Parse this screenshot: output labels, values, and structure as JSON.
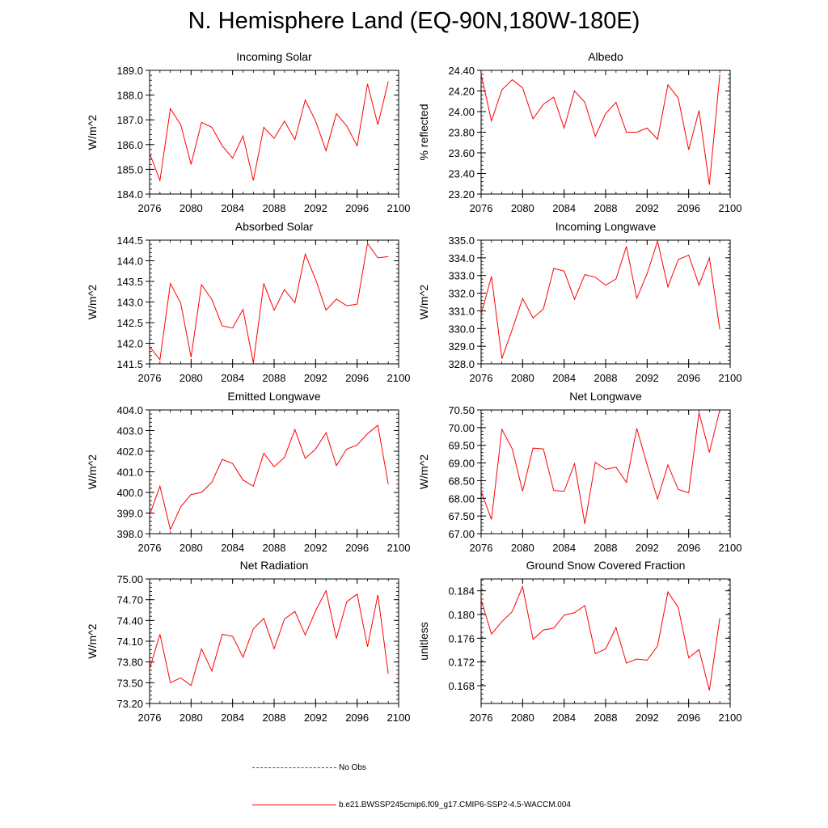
{
  "title": "N. Hemisphere Land (EQ-90N,180W-180E)",
  "colors": {
    "series": "#ff0000",
    "no_obs": "#3a3ad0",
    "axes": "#000000"
  },
  "legend": {
    "no_obs_label": "No Obs",
    "model_label": "b.e21.BWSSP245cmip6.f09_g17.CMIP6-SSP2-4.5-WACCM.004"
  },
  "chart_data": [
    {
      "type": "line",
      "title": "Incoming Solar",
      "ylabel": "W/m^2",
      "xlim": [
        2076,
        2100
      ],
      "ylim": [
        184.0,
        189.0
      ],
      "xticks": [
        2076,
        2080,
        2084,
        2088,
        2092,
        2096,
        2100
      ],
      "yticks": [
        "184.0",
        "185.0",
        "186.0",
        "187.0",
        "188.0",
        "189.0"
      ],
      "x": [
        2076,
        2077,
        2078,
        2079,
        2080,
        2081,
        2082,
        2083,
        2084,
        2085,
        2086,
        2087,
        2088,
        2089,
        2090,
        2091,
        2092,
        2093,
        2094,
        2095,
        2096,
        2097,
        2098,
        2099
      ],
      "values": [
        185.65,
        184.55,
        187.45,
        186.8,
        185.2,
        186.9,
        186.7,
        185.95,
        185.45,
        186.35,
        184.55,
        186.7,
        186.25,
        186.95,
        186.2,
        187.8,
        186.95,
        185.75,
        187.25,
        186.75,
        185.95,
        188.45,
        186.8,
        188.55
      ]
    },
    {
      "type": "line",
      "title": "Albedo",
      "ylabel": "% reflected",
      "xlim": [
        2076,
        2100
      ],
      "ylim": [
        23.2,
        24.4
      ],
      "xticks": [
        2076,
        2080,
        2084,
        2088,
        2092,
        2096,
        2100
      ],
      "yticks": [
        "23.20",
        "23.40",
        "23.60",
        "23.80",
        "24.00",
        "24.20",
        "24.40"
      ],
      "x": [
        2076,
        2077,
        2078,
        2079,
        2080,
        2081,
        2082,
        2083,
        2084,
        2085,
        2086,
        2087,
        2088,
        2089,
        2090,
        2091,
        2092,
        2093,
        2094,
        2095,
        2096,
        2097,
        2098,
        2099
      ],
      "values": [
        24.36,
        23.91,
        24.21,
        24.31,
        24.23,
        23.93,
        24.07,
        24.14,
        23.84,
        24.2,
        24.09,
        23.76,
        23.98,
        24.09,
        23.8,
        23.8,
        23.84,
        23.73,
        24.26,
        24.13,
        23.63,
        24.01,
        23.29,
        24.36
      ]
    },
    {
      "type": "line",
      "title": "Absorbed Solar",
      "ylabel": "W/m^2",
      "xlim": [
        2076,
        2100
      ],
      "ylim": [
        141.5,
        144.5
      ],
      "xticks": [
        2076,
        2080,
        2084,
        2088,
        2092,
        2096,
        2100
      ],
      "yticks": [
        "141.5",
        "142.0",
        "142.5",
        "143.0",
        "143.5",
        "144.0",
        "144.5"
      ],
      "x": [
        2076,
        2077,
        2078,
        2079,
        2080,
        2081,
        2082,
        2083,
        2084,
        2085,
        2086,
        2087,
        2088,
        2089,
        2090,
        2091,
        2092,
        2093,
        2094,
        2095,
        2096,
        2097,
        2098,
        2099
      ],
      "values": [
        141.92,
        141.6,
        143.45,
        142.97,
        141.66,
        143.42,
        143.06,
        142.42,
        142.37,
        142.82,
        141.52,
        143.45,
        142.8,
        143.3,
        142.98,
        144.16,
        143.55,
        142.8,
        143.07,
        142.91,
        142.95,
        144.42,
        144.07,
        144.1
      ]
    },
    {
      "type": "line",
      "title": "Incoming Longwave",
      "ylabel": "W/m^2",
      "xlim": [
        2076,
        2100
      ],
      "ylim": [
        328.0,
        335.0
      ],
      "xticks": [
        2076,
        2080,
        2084,
        2088,
        2092,
        2096,
        2100
      ],
      "yticks": [
        "328.0",
        "329.0",
        "330.0",
        "331.0",
        "332.0",
        "333.0",
        "334.0",
        "335.0"
      ],
      "x": [
        2076,
        2077,
        2078,
        2079,
        2080,
        2081,
        2082,
        2083,
        2084,
        2085,
        2086,
        2087,
        2088,
        2089,
        2090,
        2091,
        2092,
        2093,
        2094,
        2095,
        2096,
        2097,
        2098,
        2099
      ],
      "values": [
        330.8,
        332.95,
        328.3,
        329.95,
        331.7,
        330.6,
        331.1,
        333.4,
        333.25,
        331.65,
        333.05,
        332.9,
        332.45,
        332.8,
        334.65,
        331.7,
        333.1,
        334.95,
        332.35,
        333.9,
        334.15,
        332.45,
        334.0,
        329.95
      ]
    },
    {
      "type": "line",
      "title": "Emitted Longwave",
      "ylabel": "W/m^2",
      "xlim": [
        2076,
        2100
      ],
      "ylim": [
        398.0,
        404.0
      ],
      "xticks": [
        2076,
        2080,
        2084,
        2088,
        2092,
        2096,
        2100
      ],
      "yticks": [
        "398.0",
        "399.0",
        "400.0",
        "401.0",
        "402.0",
        "403.0",
        "404.0"
      ],
      "x": [
        2076,
        2077,
        2078,
        2079,
        2080,
        2081,
        2082,
        2083,
        2084,
        2085,
        2086,
        2087,
        2088,
        2089,
        2090,
        2091,
        2092,
        2093,
        2094,
        2095,
        2096,
        2097,
        2098,
        2099
      ],
      "values": [
        398.9,
        400.3,
        398.2,
        399.3,
        399.9,
        400.0,
        400.5,
        401.6,
        401.4,
        400.6,
        400.3,
        401.9,
        401.25,
        401.7,
        403.05,
        401.65,
        402.1,
        402.9,
        401.3,
        402.1,
        402.3,
        402.85,
        403.25,
        400.4
      ]
    },
    {
      "type": "line",
      "title": "Net Longwave",
      "ylabel": "W/m^2",
      "xlim": [
        2076,
        2100
      ],
      "ylim": [
        67.0,
        70.5
      ],
      "xticks": [
        2076,
        2080,
        2084,
        2088,
        2092,
        2096,
        2100
      ],
      "yticks": [
        "67.00",
        "67.50",
        "68.00",
        "68.50",
        "69.00",
        "69.50",
        "70.00",
        "70.50"
      ],
      "x": [
        2076,
        2077,
        2078,
        2079,
        2080,
        2081,
        2082,
        2083,
        2084,
        2085,
        2086,
        2087,
        2088,
        2089,
        2090,
        2091,
        2092,
        2093,
        2094,
        2095,
        2096,
        2097,
        2098,
        2099
      ],
      "values": [
        68.2,
        67.4,
        69.95,
        69.4,
        68.2,
        69.42,
        69.4,
        68.22,
        68.2,
        68.98,
        67.28,
        69.02,
        68.82,
        68.88,
        68.45,
        69.98,
        68.95,
        67.98,
        68.95,
        68.25,
        68.16,
        70.42,
        69.3,
        70.5
      ]
    },
    {
      "type": "line",
      "title": "Net Radiation",
      "ylabel": "W/m^2",
      "xlim": [
        2076,
        2100
      ],
      "ylim": [
        73.2,
        75.0
      ],
      "xticks": [
        2076,
        2080,
        2084,
        2088,
        2092,
        2096,
        2100
      ],
      "yticks": [
        "73.20",
        "73.50",
        "73.80",
        "74.10",
        "74.40",
        "74.70",
        "75.00"
      ],
      "x": [
        2076,
        2077,
        2078,
        2079,
        2080,
        2081,
        2082,
        2083,
        2084,
        2085,
        2086,
        2087,
        2088,
        2089,
        2090,
        2091,
        2092,
        2093,
        2094,
        2095,
        2096,
        2097,
        2098,
        2099
      ],
      "values": [
        73.7,
        74.2,
        73.5,
        73.57,
        73.46,
        73.99,
        73.67,
        74.2,
        74.17,
        73.87,
        74.28,
        74.43,
        73.99,
        74.42,
        74.53,
        74.19,
        74.54,
        74.83,
        74.14,
        74.67,
        74.78,
        74.02,
        74.77,
        73.63
      ]
    },
    {
      "type": "line",
      "title": "Ground Snow Covered Fraction",
      "ylabel": "unitless",
      "xlim": [
        2076,
        2100
      ],
      "ylim": [
        0.165,
        0.186
      ],
      "xticks": [
        2076,
        2080,
        2084,
        2088,
        2092,
        2096,
        2100
      ],
      "yticks": [
        "0.168",
        "0.172",
        "0.176",
        "0.180",
        "0.184"
      ],
      "x": [
        2076,
        2077,
        2078,
        2079,
        2080,
        2081,
        2082,
        2083,
        2084,
        2085,
        2086,
        2087,
        2088,
        2089,
        2090,
        2091,
        2092,
        2093,
        2094,
        2095,
        2096,
        2097,
        2098,
        2099
      ],
      "values": [
        0.1825,
        0.1767,
        0.1788,
        0.1805,
        0.1847,
        0.1758,
        0.1774,
        0.1777,
        0.1799,
        0.1803,
        0.1815,
        0.1734,
        0.1742,
        0.1778,
        0.1718,
        0.1725,
        0.1723,
        0.1747,
        0.1838,
        0.1812,
        0.1727,
        0.1741,
        0.1672,
        0.1794
      ]
    }
  ]
}
